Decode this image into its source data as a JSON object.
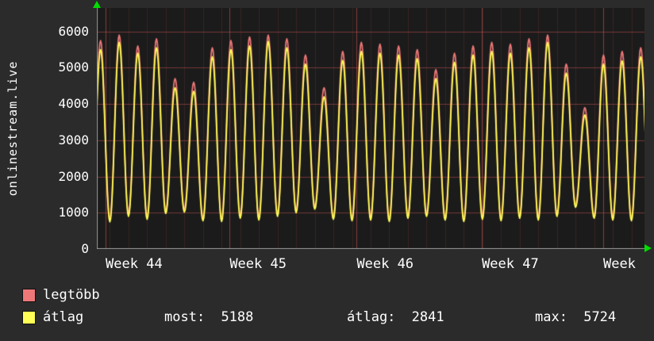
{
  "colors": {
    "background": "#2b2b2b",
    "plot_background": "#1b1b1b",
    "grid": "#a04545",
    "axis_arrow": "#00dd00",
    "text": "#ffffff"
  },
  "chart_data": {
    "type": "line",
    "title": "",
    "ylabel": "onlinestream.live",
    "xlabel": "",
    "ylim": [
      0,
      6650
    ],
    "yticks": [
      0,
      1000,
      2000,
      3000,
      4000,
      5000,
      6000
    ],
    "xtick_labels": [
      "Week 44",
      "Week 45",
      "Week 46",
      "Week 47",
      "Week"
    ],
    "grid": true,
    "legend_position": "bottom-left",
    "series": [
      {
        "name": "legtöbb",
        "color": "#ee7777",
        "daily_peaks": [
          5750,
          5900,
          5600,
          5800,
          4700,
          4600,
          5550,
          5750,
          5850,
          5900,
          5800,
          5350,
          4450,
          5450,
          5700,
          5650,
          5600,
          5500,
          4950,
          5400,
          5600,
          5700,
          5650,
          5800,
          5900,
          5100,
          3900,
          5350,
          5450,
          5550
        ],
        "daily_troughs": [
          870,
          820,
          970,
          890,
          1050,
          1090,
          850,
          830,
          920,
          870,
          970,
          1070,
          1170,
          890,
          850,
          870,
          830,
          920,
          970,
          870,
          830,
          890,
          850,
          920,
          870,
          970,
          1220,
          920,
          870,
          850
        ]
      },
      {
        "name": "átlag",
        "color": "#ffff55",
        "daily_peaks": [
          5500,
          5700,
          5400,
          5550,
          4450,
          4350,
          5300,
          5500,
          5600,
          5724,
          5550,
          5100,
          4200,
          5200,
          5450,
          5400,
          5350,
          5250,
          4700,
          5150,
          5350,
          5450,
          5400,
          5550,
          5700,
          4850,
          3700,
          5100,
          5188,
          5300
        ],
        "daily_troughs": [
          800,
          750,
          900,
          820,
          980,
          1020,
          780,
          760,
          850,
          800,
          900,
          1000,
          1100,
          820,
          780,
          800,
          760,
          850,
          900,
          800,
          760,
          820,
          780,
          850,
          800,
          900,
          1150,
          850,
          800,
          780
        ]
      }
    ],
    "stats": [
      {
        "label": "most:",
        "value": "5188"
      },
      {
        "label": "átlag:",
        "value": "2841"
      },
      {
        "label": "max:",
        "value": "5724"
      }
    ]
  }
}
